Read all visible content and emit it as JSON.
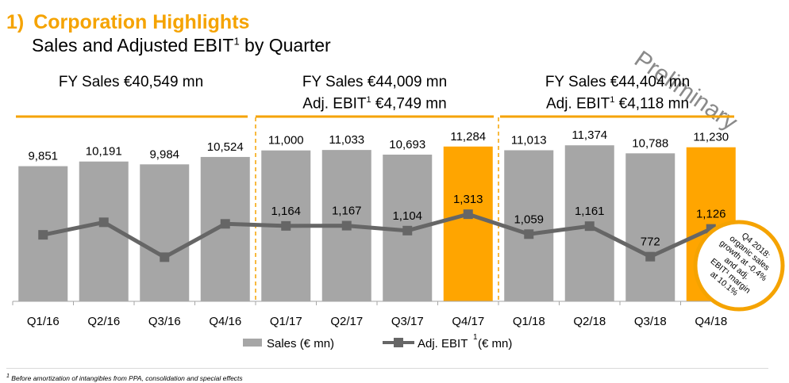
{
  "header": {
    "number": "1)",
    "title": "Corporation Highlights",
    "subtitle_text": "Sales and Adjusted EBIT",
    "subtitle_sup": "1",
    "subtitle_suffix": " by Quarter",
    "stamp": "Preliminary"
  },
  "fy_blocks": [
    {
      "sales_line": "FY Sales €40,549 mn",
      "ebit_prefix": "",
      "ebit_sup": "",
      "ebit_value": ""
    },
    {
      "sales_line": "FY Sales €44,009 mn",
      "ebit_prefix": "Adj. EBIT",
      "ebit_sup": "1",
      "ebit_value": " €4,749 mn"
    },
    {
      "sales_line": "FY Sales €44,404 mn",
      "ebit_prefix": "Adj. EBIT",
      "ebit_sup": "1",
      "ebit_value": " €4,118 mn"
    }
  ],
  "chart_data": {
    "type": "bar",
    "categories": [
      "Q1/16",
      "Q2/16",
      "Q3/16",
      "Q4/16",
      "Q1/17",
      "Q2/17",
      "Q3/17",
      "Q4/17",
      "Q1/18",
      "Q2/18",
      "Q3/18",
      "Q4/18"
    ],
    "series": [
      {
        "name": "Sales (€ mn)",
        "type": "bar",
        "values": [
          9851,
          10191,
          9984,
          10524,
          11000,
          11033,
          10693,
          11284,
          11013,
          11374,
          10788,
          11230
        ],
        "labels": [
          "9,851",
          "10,191",
          "9,984",
          "10,524",
          "11,000",
          "11,033",
          "10,693",
          "11,284",
          "11,013",
          "11,374",
          "10,788",
          "11,230"
        ],
        "color": "#a6a6a6",
        "highlight_color": "#ffa500",
        "highlight": [
          false,
          false,
          false,
          false,
          false,
          false,
          false,
          true,
          false,
          false,
          false,
          true
        ]
      },
      {
        "name": "Adj. EBIT",
        "legend_sup": "1",
        "legend_suffix": "(€ mn)",
        "type": "line",
        "values": [
          1050,
          1210,
          765,
          1190,
          1164,
          1167,
          1104,
          1313,
          1059,
          1161,
          772,
          1126
        ],
        "labels": [
          "",
          "",
          "",
          "",
          "1,164",
          "1,167",
          "1,104",
          "1,313",
          "1,059",
          "1,161",
          "772",
          "1,126"
        ],
        "color": "#666666"
      }
    ],
    "callout": "Q4 2018: organic sales growth at -0.4% and adj. EBIT¹ margin at 10.1%",
    "callout_lines": [
      "Q4 2018:",
      "organic sales",
      "growth at -0.4%",
      "and adj.",
      "EBIT¹ margin",
      "at 10.1%"
    ],
    "colors": {
      "accent": "#f5a300",
      "bar": "#a6a6a6",
      "highlight": "#ffa500",
      "line": "#666666"
    },
    "grid": false,
    "legend": "bottom"
  },
  "footnote": {
    "sup": "1",
    "text": " Before amortization of intangibles from PPA, consolidation and special effects"
  }
}
